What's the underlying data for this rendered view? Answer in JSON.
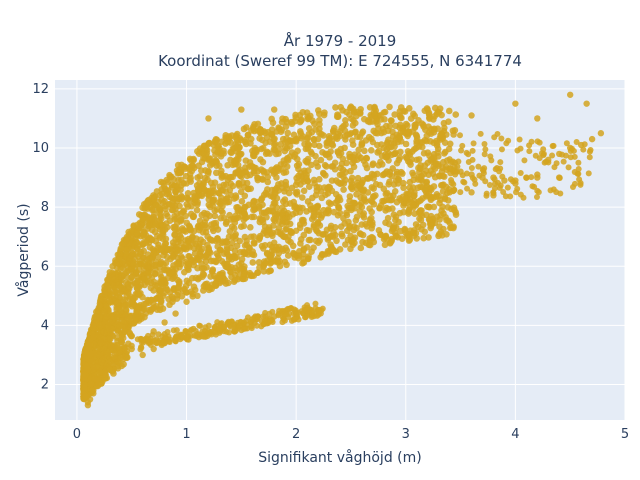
{
  "chart_data": {
    "type": "scatter",
    "title_line1": "År 1979 - 2019",
    "title_line2": "Koordinat (Sweref 99 TM): E 724555, N 6341774",
    "xlabel": "Signifikant våghöjd (m)",
    "ylabel": "Vågperiod (s)",
    "xlim": [
      -0.2,
      5.0
    ],
    "ylim": [
      0.8,
      12.3
    ],
    "xticks": [
      0,
      1,
      2,
      3,
      4,
      5
    ],
    "yticks": [
      2,
      4,
      6,
      8,
      10,
      12
    ],
    "grid": true,
    "marker_color": "#d4a420",
    "background_color": "#e5ecf6",
    "series": [
      {
        "values_description_free": true,
        "x": [
          0.07,
          0.1,
          0.12,
          0.15,
          0.18,
          0.2,
          0.25,
          0.3,
          0.35,
          0.4,
          0.45,
          0.5,
          0.55,
          0.6,
          0.7,
          0.8,
          0.9,
          1.0,
          1.1,
          1.2,
          1.3,
          1.4,
          1.5,
          1.6,
          1.7,
          1.8,
          1.9,
          2.0,
          2.1,
          2.2,
          2.3,
          2.4,
          2.5,
          2.6,
          2.7,
          2.8,
          2.9,
          3.0,
          3.1,
          3.2,
          3.3,
          3.4,
          3.5,
          3.6,
          3.7,
          3.8,
          3.9,
          4.0,
          4.1,
          4.2,
          4.3,
          4.4,
          4.5,
          4.6,
          4.7,
          4.78,
          0.1,
          0.15,
          0.2,
          0.3,
          0.4,
          0.5,
          0.6,
          0.7,
          0.8,
          0.9,
          1.0,
          1.1,
          1.2,
          1.3,
          1.4,
          1.5,
          1.6,
          1.7,
          1.8,
          1.9,
          2.0,
          2.2,
          2.4,
          2.6,
          2.8,
          3.0,
          3.2,
          3.4,
          3.6,
          3.8,
          4.0,
          4.2,
          4.4,
          0.6,
          0.7,
          0.8,
          0.9,
          1.0,
          1.1,
          1.2,
          1.3,
          1.4,
          1.5,
          1.6,
          1.7,
          1.8,
          1.9,
          2.0,
          2.1,
          2.2,
          1.2,
          1.5,
          1.8,
          2.1,
          2.5,
          2.8,
          3.2,
          3.6,
          4.0,
          4.2,
          4.5,
          4.65,
          0.08,
          0.1,
          0.12,
          0.14,
          0.16,
          0.18,
          0.2,
          0.22
        ],
        "y": [
          2.0,
          2.5,
          3.0,
          3.6,
          4.2,
          4.6,
          5.2,
          5.8,
          6.2,
          6.6,
          6.9,
          7.2,
          7.4,
          7.6,
          7.9,
          8.2,
          8.5,
          8.8,
          9.0,
          9.2,
          9.4,
          9.6,
          9.8,
          9.9,
          10.0,
          10.1,
          10.2,
          10.3,
          10.3,
          10.3,
          10.4,
          10.4,
          10.5,
          10.5,
          10.2,
          10.0,
          9.8,
          9.7,
          9.6,
          9.5,
          9.4,
          9.3,
          9.2,
          9.1,
          9.0,
          9.0,
          8.9,
          8.9,
          9.0,
          9.1,
          9.6,
          9.8,
          10.0,
          10.1,
          10.3,
          10.5,
          1.4,
          1.7,
          2.0,
          2.5,
          2.9,
          3.2,
          3.5,
          3.8,
          4.1,
          4.4,
          4.8,
          5.0,
          5.3,
          5.6,
          5.8,
          6.1,
          6.4,
          6.6,
          6.8,
          7.0,
          7.2,
          7.5,
          7.8,
          8.0,
          8.2,
          8.3,
          8.4,
          8.5,
          8.5,
          8.4,
          8.8,
          9.0,
          9.0,
          3.0,
          3.2,
          3.4,
          3.5,
          3.6,
          3.7,
          3.8,
          3.9,
          4.0,
          4.1,
          4.2,
          4.3,
          4.3,
          4.4,
          4.4,
          4.5,
          4.5,
          11.0,
          11.3,
          11.3,
          11.2,
          11.4,
          11.2,
          11.3,
          11.1,
          11.5,
          11.0,
          11.8,
          11.5,
          1.6,
          1.3,
          1.5,
          1.8,
          2.2,
          2.6,
          3.0,
          3.4
        ]
      }
    ]
  }
}
